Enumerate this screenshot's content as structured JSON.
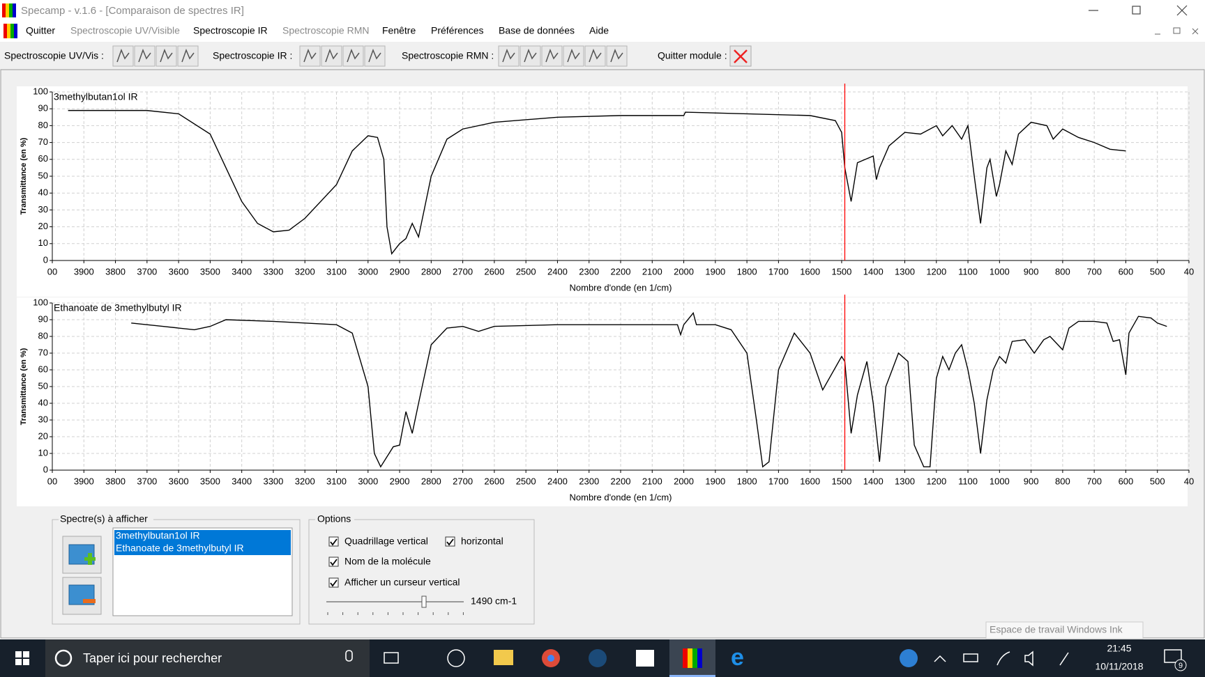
{
  "window": {
    "title": "Specamp - v.1.6 - [Comparaison de spectres IR]"
  },
  "menu": [
    {
      "label": "Quitter",
      "enabled": true
    },
    {
      "label": "Spectroscopie UV/Visible",
      "enabled": false
    },
    {
      "label": "Spectroscopie IR",
      "enabled": true
    },
    {
      "label": "Spectroscopie RMN",
      "enabled": false
    },
    {
      "label": "Fenêtre",
      "enabled": true
    },
    {
      "label": "Préférences",
      "enabled": true
    },
    {
      "label": "Base de données",
      "enabled": true
    },
    {
      "label": "Aide",
      "enabled": true
    }
  ],
  "toolbar": [
    "Spectroscopie UV/Vis :",
    "Spectroscopie IR :",
    "Spectroscopie RMN :",
    "Quitter module :"
  ],
  "chart_data": [
    {
      "type": "line",
      "title": "3methylbutan1ol IR",
      "x_label": "Nombre d'onde (en 1/cm)",
      "y_label": "Transmittance (en %)",
      "x": [
        3950,
        3700,
        3600,
        3500,
        3450,
        3400,
        3350,
        3300,
        3250,
        3200,
        3100,
        3050,
        3000,
        2970,
        2950,
        2940,
        2925,
        2900,
        2880,
        2860,
        2840,
        2800,
        2750,
        2700,
        2600,
        2400,
        2200,
        2000,
        1995,
        1800,
        1600,
        1520,
        1500,
        1490,
        1470,
        1450,
        1400,
        1390,
        1380,
        1350,
        1300,
        1250,
        1200,
        1180,
        1150,
        1120,
        1100,
        1080,
        1060,
        1040,
        1030,
        1010,
        1000,
        980,
        960,
        940,
        900,
        850,
        830,
        800,
        750,
        700,
        650,
        600
      ],
      "series": [
        {
          "color": "#000000",
          "values": [
            89,
            89,
            87,
            75,
            55,
            35,
            22,
            17,
            18,
            25,
            45,
            65,
            74,
            73,
            60,
            20,
            4,
            10,
            13,
            22,
            14,
            50,
            72,
            78,
            82,
            85,
            86,
            86,
            88,
            87,
            86,
            83,
            76,
            55,
            35,
            58,
            62,
            48,
            55,
            68,
            76,
            75,
            80,
            74,
            80,
            72,
            80,
            50,
            22,
            55,
            60,
            38,
            45,
            65,
            57,
            75,
            82,
            80,
            72,
            78,
            73,
            70,
            66,
            65
          ]
        }
      ],
      "xlim": [
        4000,
        400
      ],
      "ylim": [
        0,
        100
      ],
      "xticks": [
        {
          "value": 4000,
          "label": "00"
        },
        3900,
        3800,
        3700,
        3600,
        3500,
        3400,
        3300,
        3200,
        3100,
        3000,
        2900,
        2800,
        2700,
        2600,
        2500,
        2400,
        2300,
        2200,
        2100,
        2000,
        1900,
        1800,
        1700,
        1600,
        1500,
        1400,
        1300,
        1200,
        1100,
        1000,
        900,
        800,
        700,
        600,
        500,
        {
          "value": 400,
          "label": "40"
        }
      ],
      "yticks": [
        0,
        10,
        20,
        30,
        40,
        50,
        60,
        70,
        80,
        90,
        100
      ],
      "grid": true,
      "cursor": 1490,
      "cursor_color": "#ff0000"
    },
    {
      "type": "line",
      "title": "Ethanoate de 3methylbutyl IR",
      "x_label": "Nombre d'onde (en 1/cm)",
      "y_label": "Transmittance (en %)",
      "x": [
        3750,
        3650,
        3550,
        3500,
        3450,
        3300,
        3100,
        3050,
        3000,
        2980,
        2960,
        2940,
        2920,
        2900,
        2880,
        2860,
        2840,
        2800,
        2750,
        2700,
        2650,
        2600,
        2400,
        2200,
        2020,
        2010,
        2000,
        1970,
        1960,
        1900,
        1850,
        1800,
        1770,
        1750,
        1730,
        1700,
        1650,
        1600,
        1560,
        1500,
        1490,
        1470,
        1450,
        1420,
        1400,
        1380,
        1360,
        1320,
        1290,
        1270,
        1240,
        1220,
        1200,
        1180,
        1160,
        1140,
        1120,
        1100,
        1080,
        1060,
        1040,
        1020,
        1000,
        980,
        960,
        920,
        890,
        860,
        840,
        800,
        780,
        750,
        700,
        660,
        640,
        620,
        600,
        590,
        560,
        520,
        500,
        470
      ],
      "series": [
        {
          "color": "#000000",
          "values": [
            88,
            86,
            84,
            86,
            90,
            89,
            87,
            82,
            50,
            10,
            2,
            8,
            14,
            15,
            35,
            22,
            40,
            75,
            85,
            86,
            83,
            86,
            87,
            87,
            87,
            81,
            87,
            94,
            87,
            87,
            84,
            70,
            30,
            2,
            5,
            60,
            82,
            70,
            48,
            68,
            65,
            22,
            45,
            65,
            40,
            5,
            50,
            70,
            65,
            15,
            2,
            2,
            55,
            68,
            60,
            70,
            75,
            60,
            40,
            10,
            42,
            60,
            68,
            64,
            77,
            78,
            70,
            78,
            80,
            72,
            85,
            89,
            89,
            88,
            77,
            78,
            57,
            82,
            92,
            91,
            88,
            86
          ]
        }
      ],
      "xlim": [
        4000,
        400
      ],
      "ylim": [
        0,
        100
      ],
      "xticks": [
        {
          "value": 4000,
          "label": "00"
        },
        3900,
        3800,
        3700,
        3600,
        3500,
        3400,
        3300,
        3200,
        3100,
        3000,
        2900,
        2800,
        2700,
        2600,
        2500,
        2400,
        2300,
        2200,
        2100,
        2000,
        1900,
        1800,
        1700,
        1600,
        1500,
        1400,
        1300,
        1200,
        1100,
        1000,
        900,
        800,
        700,
        600,
        500,
        {
          "value": 400,
          "label": "40"
        }
      ],
      "yticks": [
        0,
        10,
        20,
        30,
        40,
        50,
        60,
        70,
        80,
        90,
        100
      ],
      "grid": true,
      "cursor": 1490,
      "cursor_color": "#ff0000"
    }
  ],
  "panel": {
    "spectra_title": "Spectre(s) à afficher",
    "spectra": [
      "3methylbutan1ol IR",
      "Ethanoate de 3methylbutyl IR"
    ],
    "options_title": "Options",
    "options": [
      {
        "label": "Quadrillage vertical",
        "checked": true
      },
      {
        "label": "horizontal",
        "checked": true
      },
      {
        "label": "Nom de la molécule",
        "checked": true
      },
      {
        "label": "Afficher un curseur vertical",
        "checked": true
      }
    ],
    "slider_label": "1490 cm-1"
  },
  "taskbar": {
    "search": "Taper ici pour rechercher",
    "time": "21:45",
    "date": "10/11/2018",
    "notifications": "9",
    "tooltip": "Espace de travail Windows Ink"
  }
}
